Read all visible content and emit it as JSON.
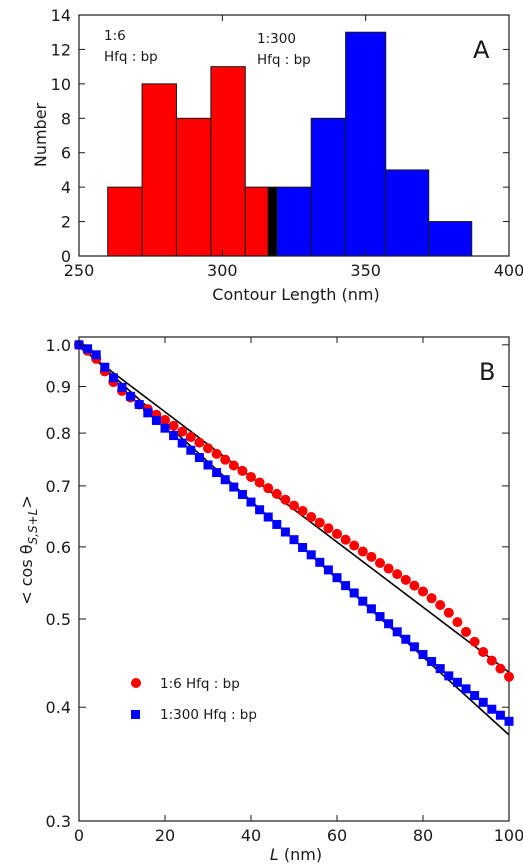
{
  "chart_data": [
    {
      "type": "bar",
      "panel_label": "A",
      "xlabel": "Contour Length (nm)",
      "ylabel": "Number",
      "xlim": [
        250,
        400
      ],
      "ylim": [
        0,
        14
      ],
      "xticks": [
        250,
        300,
        350,
        400
      ],
      "yticks": [
        0,
        2,
        4,
        6,
        8,
        10,
        12,
        14
      ],
      "annotations": [
        {
          "line1": "1:6",
          "line2": "Hfq : bp"
        },
        {
          "line1": "1:300",
          "line2": "Hfq : bp"
        }
      ],
      "series": [
        {
          "name": "1:6",
          "color": "#ff0000",
          "bins": [
            {
              "x0": 260,
              "x1": 272,
              "count": 4
            },
            {
              "x0": 272,
              "x1": 284,
              "count": 10
            },
            {
              "x0": 284,
              "x1": 296,
              "count": 8
            },
            {
              "x0": 296,
              "x1": 308,
              "count": 11
            },
            {
              "x0": 308,
              "x1": 316,
              "count": 4
            }
          ]
        },
        {
          "name": "overlap",
          "color": "#000000",
          "bins": [
            {
              "x0": 316,
              "x1": 319,
              "count": 4
            }
          ]
        },
        {
          "name": "1:300",
          "color": "#0000ff",
          "bins": [
            {
              "x0": 319,
              "x1": 331,
              "count": 4
            },
            {
              "x0": 331,
              "x1": 343,
              "count": 8
            },
            {
              "x0": 343,
              "x1": 357,
              "count": 13
            },
            {
              "x0": 357,
              "x1": 372,
              "count": 5
            },
            {
              "x0": 372,
              "x1": 387,
              "count": 2
            }
          ]
        }
      ]
    },
    {
      "type": "scatter",
      "panel_label": "B",
      "xlabel_italic": "L",
      "xlabel_rest": " (nm)",
      "ylabel_pre": "< cos θ",
      "ylabel_sub": "S,S+L",
      "ylabel_post": ">",
      "xlim": [
        0,
        100
      ],
      "ylim": [
        0.3,
        1.02
      ],
      "yscale": "log",
      "xticks": [
        0,
        20,
        40,
        60,
        80,
        100
      ],
      "yticks": [
        0.3,
        0.4,
        0.5,
        0.6,
        0.7,
        0.8,
        0.9,
        1.0
      ],
      "ytick_labels": [
        "0.3",
        "0.4",
        "0.5",
        "0.6",
        "0.7",
        "0.8",
        "0.9",
        "1.0"
      ],
      "series": [
        {
          "name": "1:6  Hfq : bp",
          "marker": "circle",
          "color": "#ff0000",
          "x": [
            0,
            2,
            4,
            6,
            8,
            10,
            12,
            14,
            16,
            18,
            20,
            22,
            24,
            26,
            28,
            30,
            32,
            34,
            36,
            38,
            40,
            42,
            44,
            46,
            48,
            50,
            52,
            54,
            56,
            58,
            60,
            62,
            64,
            66,
            68,
            70,
            72,
            74,
            76,
            78,
            80,
            82,
            84,
            86,
            88,
            90,
            92,
            94,
            96,
            98,
            100
          ],
          "y": [
            1.0,
            0.985,
            0.965,
            0.935,
            0.91,
            0.89,
            0.875,
            0.86,
            0.85,
            0.838,
            0.827,
            0.815,
            0.803,
            0.792,
            0.781,
            0.77,
            0.759,
            0.748,
            0.737,
            0.727,
            0.716,
            0.706,
            0.696,
            0.686,
            0.676,
            0.666,
            0.657,
            0.647,
            0.638,
            0.629,
            0.62,
            0.611,
            0.602,
            0.593,
            0.585,
            0.576,
            0.568,
            0.56,
            0.552,
            0.544,
            0.536,
            0.527,
            0.518,
            0.508,
            0.496,
            0.484,
            0.472,
            0.46,
            0.45,
            0.441,
            0.432
          ]
        },
        {
          "name": "1:300 Hfq : bp",
          "marker": "square",
          "color": "#0000ff",
          "x": [
            0,
            2,
            4,
            6,
            8,
            10,
            12,
            14,
            16,
            18,
            20,
            22,
            24,
            26,
            28,
            30,
            32,
            34,
            36,
            38,
            40,
            42,
            44,
            46,
            48,
            50,
            52,
            54,
            56,
            58,
            60,
            62,
            64,
            66,
            68,
            70,
            72,
            74,
            76,
            78,
            80,
            82,
            84,
            86,
            88,
            90,
            92,
            94,
            96,
            98,
            100
          ],
          "y": [
            1.0,
            0.99,
            0.975,
            0.945,
            0.92,
            0.898,
            0.878,
            0.86,
            0.842,
            0.826,
            0.81,
            0.795,
            0.78,
            0.766,
            0.752,
            0.738,
            0.724,
            0.711,
            0.698,
            0.685,
            0.672,
            0.659,
            0.647,
            0.635,
            0.623,
            0.611,
            0.599,
            0.588,
            0.577,
            0.566,
            0.555,
            0.544,
            0.534,
            0.523,
            0.513,
            0.503,
            0.494,
            0.484,
            0.475,
            0.466,
            0.457,
            0.449,
            0.441,
            0.433,
            0.426,
            0.419,
            0.412,
            0.405,
            0.398,
            0.392,
            0.386
          ]
        }
      ],
      "fits": [
        {
          "name": "fit-1-6",
          "x": [
            0,
            100
          ],
          "y": [
            0.995,
            0.437
          ]
        },
        {
          "name": "fit-1-300",
          "x": [
            0,
            100
          ],
          "y": [
            1.0,
            0.373
          ]
        }
      ]
    }
  ]
}
